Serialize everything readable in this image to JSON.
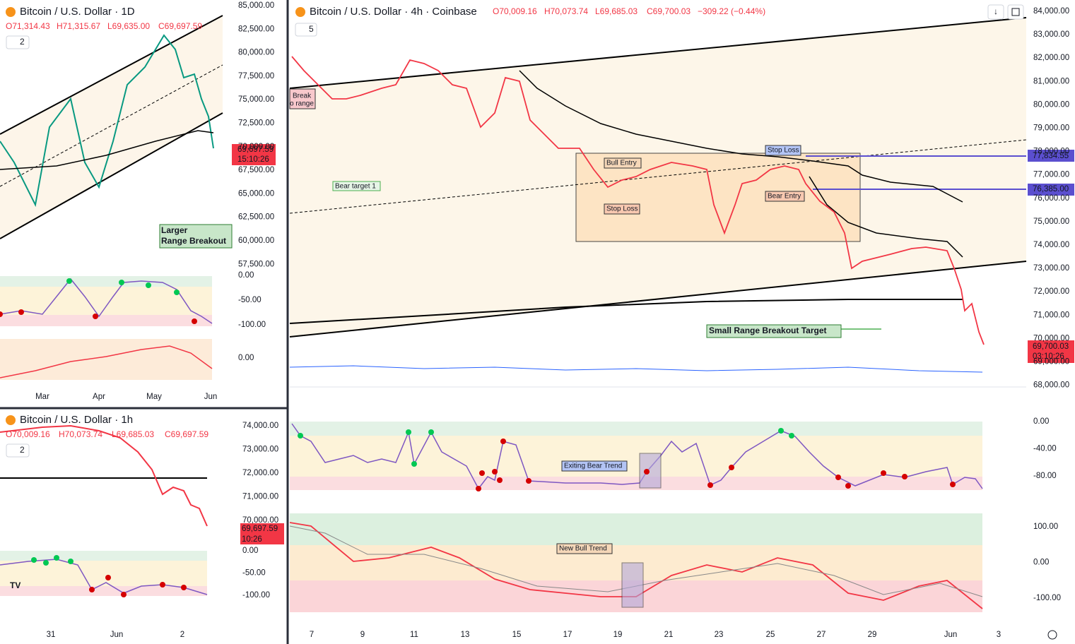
{
  "panes": [
    {
      "title": "Bitcoin / U.S. Dollar · 1D",
      "ohlc": [
        "O71,314.43",
        "H71,315.67",
        "L69,635.00",
        "C69,697.59"
      ],
      "indicator_count": "2",
      "price_axis": [
        "85,000.00",
        "82,500.00",
        "80,000.00",
        "77,500.00",
        "75,000.00",
        "72,500.00",
        "70,000.00",
        "67,500.00",
        "65,000.00",
        "62,500.00",
        "60,000.00",
        "57,500.00"
      ],
      "last_price": "69,697.59",
      "countdown": "15:10:26",
      "osc_axis": [
        "0.00",
        "-50.00",
        "-100.00"
      ],
      "macd_axis": [
        "0.00"
      ],
      "time_axis": [
        "Mar",
        "Apr",
        "May",
        "Jun"
      ],
      "annotation": [
        "Larger",
        "Range Breakout"
      ]
    },
    {
      "title": "Bitcoin / U.S. Dollar · 1h",
      "ohlc": [
        "O70,009.16",
        "H70,073.74",
        "L69,685.03",
        "C69,697.59"
      ],
      "indicator_count": "2",
      "price_axis": [
        "74,000.00",
        "73,000.00",
        "72,000.00",
        "71,000.00",
        "70,000.00"
      ],
      "last_price": "69,697.59",
      "countdown": "10:26",
      "osc_axis": [
        "0.00",
        "-50.00",
        "-100.00"
      ],
      "time_axis": [
        "31",
        "Jun",
        "2"
      ]
    },
    {
      "title": "Bitcoin / U.S. Dollar · 4h · Coinbase",
      "ohlc": [
        "O70,009.16",
        "H70,073.74",
        "L69,685.03",
        "C69,700.03"
      ],
      "change": "−309.22 (−0.44%)",
      "indicator_count": "5",
      "price_axis": [
        "84,000.00",
        "83,000.00",
        "82,000.00",
        "81,000.00",
        "80,000.00",
        "79,000.00",
        "78,000.00",
        "77,000.00",
        "76,000.00",
        "75,000.00",
        "74,000.00",
        "73,000.00",
        "72,000.00",
        "71,000.00",
        "70,000.00",
        "69,000.00",
        "68,000.00"
      ],
      "level_labels": [
        "77,834.55",
        "76,385.00"
      ],
      "last_price": "69,700.03",
      "countdown": "03:10:26",
      "osc_axis": [
        "0.00",
        "-40.00",
        "-80.00"
      ],
      "macd_axis": [
        "100.00",
        "0.00",
        "-100.00"
      ],
      "time_axis": [
        "7",
        "9",
        "11",
        "13",
        "15",
        "17",
        "19",
        "21",
        "23",
        "25",
        "27",
        "29",
        "Jun",
        "3"
      ],
      "annotations": {
        "break_range": [
          "Break",
          "o range"
        ],
        "bear_target": "Bear target 1",
        "bull_entry": "Bull Entry",
        "stop_loss_low": "Stop Loss",
        "stop_loss_high": "Stop Loss",
        "bear_entry": "Bear Entry",
        "small_breakout": "Small Range Breakout Target",
        "exiting_bear": "Exiting Bear Trend",
        "new_bull": "New Bull Trend"
      }
    }
  ]
}
